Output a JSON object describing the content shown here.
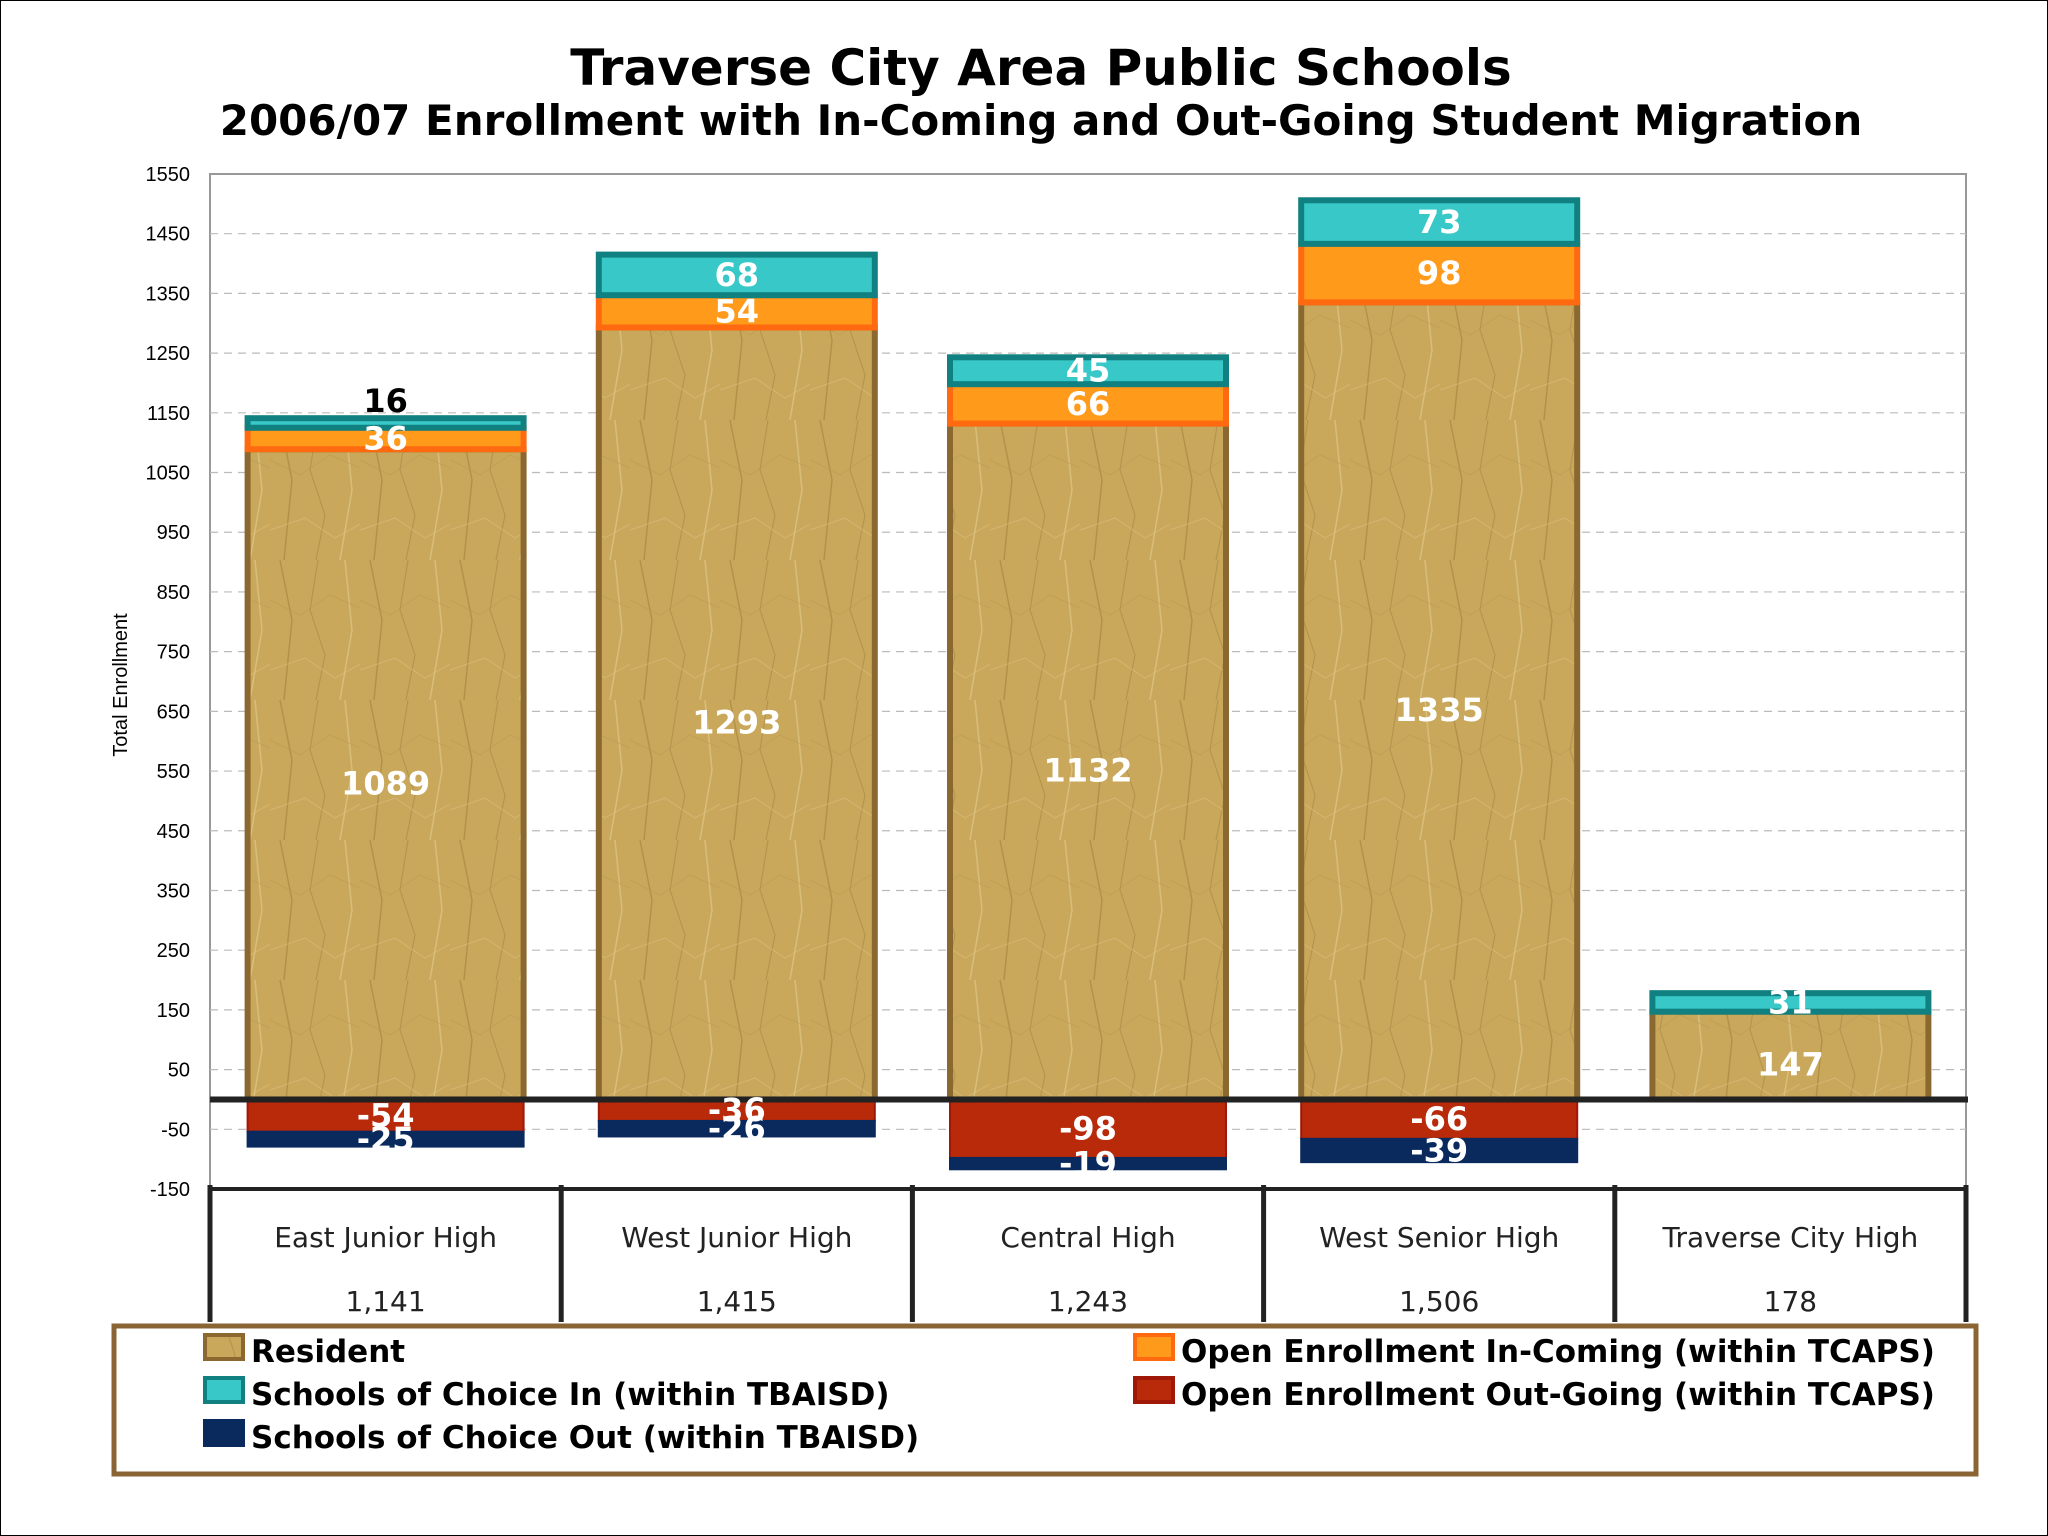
{
  "chart_data": {
    "type": "bar",
    "stacked": true,
    "title": "Traverse City Area Public Schools",
    "subtitle": "2006/07 Enrollment with In-Coming and Out-Going Student Migration",
    "ylabel": "Total Enrollment",
    "xlabel": "",
    "ylim": [
      -150,
      1550
    ],
    "yticks": [
      1550,
      1450,
      1350,
      1250,
      1150,
      1050,
      950,
      850,
      750,
      650,
      550,
      450,
      350,
      250,
      150,
      50,
      -50,
      -150
    ],
    "grid": true,
    "legend_position": "bottom",
    "categories": [
      "East Junior High",
      "West Junior High",
      "Central High",
      "West Senior High",
      "Traverse City High"
    ],
    "totals": [
      "1,141",
      "1,415",
      "1,243",
      "1,506",
      "178"
    ],
    "series": [
      {
        "name": "Resident",
        "color": "#c8a65a",
        "values": [
          1089,
          1293,
          1132,
          1335,
          147
        ]
      },
      {
        "name": "Open Enrollment In-Coming (within TCAPS)",
        "color": "#ff9a1a",
        "values": [
          36,
          54,
          66,
          98,
          null
        ]
      },
      {
        "name": "Schools of Choice In (within TBAISD)",
        "color": "#38c8c8",
        "values": [
          16,
          68,
          45,
          73,
          31
        ]
      },
      {
        "name": "Open Enrollment Out-Going (within TCAPS)",
        "color": "#b82a0a",
        "values": [
          -54,
          -36,
          -98,
          -66,
          null
        ]
      },
      {
        "name": "Schools of Choice Out (within TBAISD)",
        "color": "#0a2a5e",
        "values": [
          -25,
          -26,
          -19,
          -39,
          null
        ]
      }
    ]
  }
}
